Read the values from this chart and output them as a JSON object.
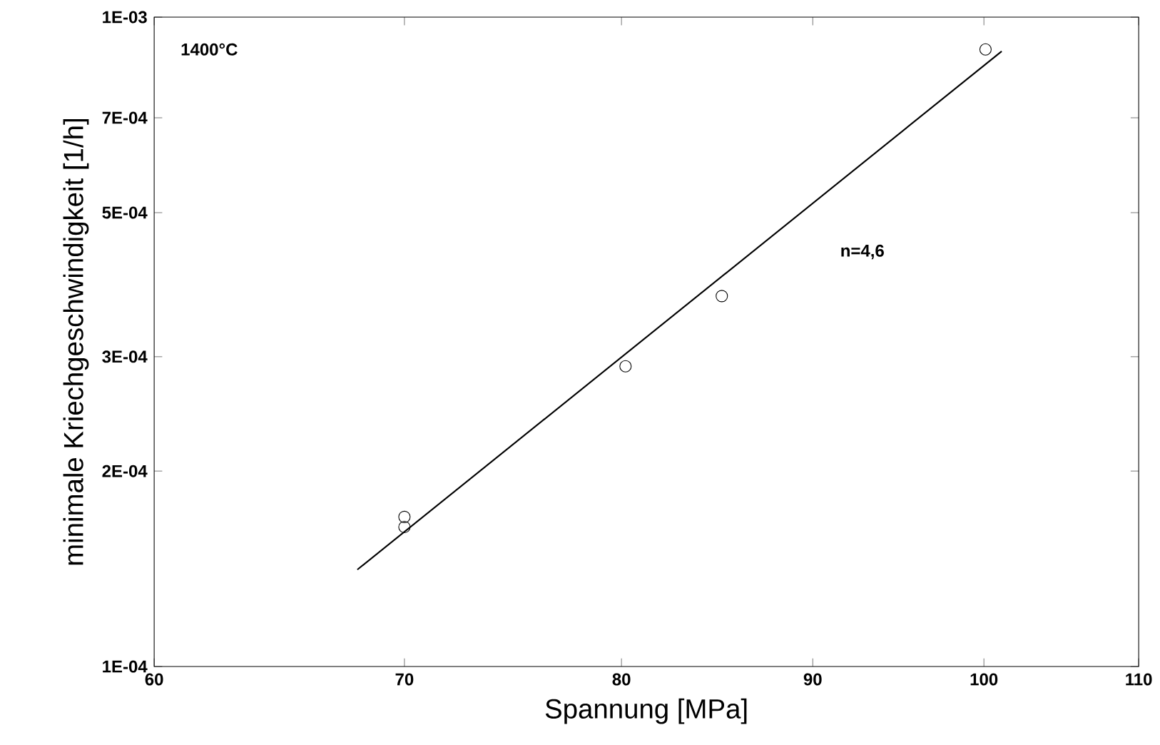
{
  "chart_data": {
    "type": "scatter",
    "xlabel": "Spannung [MPa]",
    "ylabel": "minimale Kriechgeschwindigkeit [1/h]",
    "log": "xy",
    "grid": false,
    "annotations": [
      "1400°C",
      "n=4,6"
    ],
    "xlim": [
      60,
      110
    ],
    "xticks": [
      60,
      70,
      80,
      90,
      100,
      110
    ],
    "ylim": [
      0.0001,
      0.001
    ],
    "yticks": [
      {
        "value": 0.0001,
        "label": "1E-04"
      },
      {
        "value": 0.0002,
        "label": "2E-04"
      },
      {
        "value": 0.0003,
        "label": "3E-04"
      },
      {
        "value": 0.0005,
        "label": "5E-04"
      },
      {
        "value": 0.0007,
        "label": "7E-04"
      },
      {
        "value": 0.001,
        "label": "1E-03"
      }
    ],
    "series": [
      {
        "color": "#000000",
        "marker": "circle",
        "x": [
          70,
          70,
          80.2,
          85.1,
          100.1
        ],
        "values": [
          0.00017,
          0.000164,
          0.00029,
          0.000372,
          0.000892
        ]
      },
      {
        "type": "line",
        "color": "#000000",
        "marker": "none",
        "line_style": "solid",
        "x": [
          68,
          101.1
        ],
        "values": [
          0.000141,
          0.000886
        ]
      }
    ]
  }
}
